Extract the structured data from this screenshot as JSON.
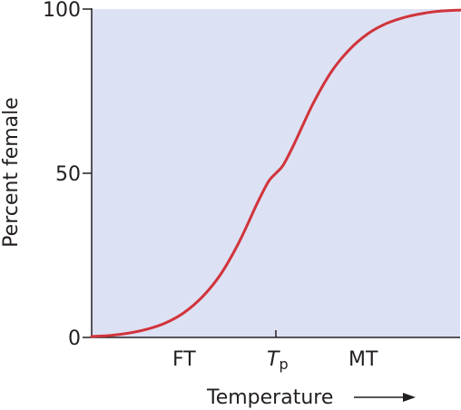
{
  "chart_data": {
    "type": "line",
    "title": "",
    "xlabel": "Temperature",
    "ylabel": "Percent female",
    "ylim": [
      0,
      100
    ],
    "y_ticks": [
      {
        "value": 0,
        "label": "0"
      },
      {
        "value": 50,
        "label": "50"
      },
      {
        "value": 100,
        "label": "100"
      }
    ],
    "x_labels": {
      "left": "FT",
      "pivot_main": "T",
      "pivot_sub": "p",
      "right": "MT"
    },
    "series": [
      {
        "x": [
          0,
          0.05,
          0.1,
          0.15,
          0.2,
          0.25,
          0.3,
          0.35,
          0.4,
          0.45,
          0.48,
          0.5,
          0.52,
          0.55,
          0.6,
          0.65,
          0.7,
          0.75,
          0.8,
          0.85,
          0.9,
          0.95,
          1
        ],
        "values": [
          0.3,
          0.6,
          1.3,
          2.5,
          4.4,
          7.5,
          12.3,
          19.2,
          29,
          41,
          47.5,
          50,
          52.5,
          59,
          71,
          80.8,
          87.7,
          92.5,
          95.6,
          97.5,
          98.7,
          99.4,
          99.7
        ]
      }
    ],
    "colors": {
      "plot_background": "#dde1f4",
      "curve": "#d1343b",
      "axes": "#231f20"
    }
  }
}
